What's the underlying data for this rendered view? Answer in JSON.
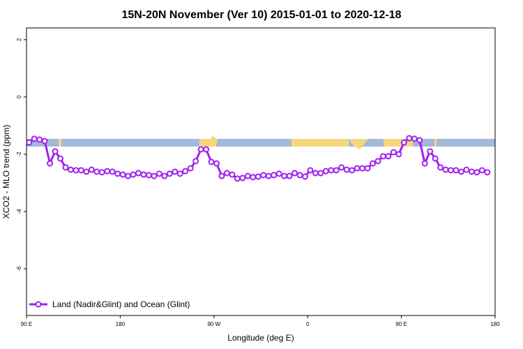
{
  "chart_data": {
    "type": "line",
    "title": "15N-20N November (Ver 10)   2015-01-01 to 2020-12-18",
    "x_label": "Longitude (deg E)",
    "y_label": "XCO2 - MLO trend (ppm)",
    "xlim": [
      90,
      540
    ],
    "xticks": [
      {
        "value": 90,
        "label": "90 E"
      },
      180,
      {
        "value": 270,
        "label": "90 W"
      },
      {
        "value": 360,
        "label": "0"
      },
      {
        "value": 450,
        "label": "90 E"
      },
      {
        "value": 540,
        "label": "180"
      }
    ],
    "ylim": [
      -7.63,
      2.41
    ],
    "yticks": [
      2,
      0,
      -2,
      -4,
      -6
    ],
    "legend": "bottom-left",
    "x": [
      92.5,
      97.5,
      102.5,
      107.5,
      112.5,
      117.5,
      122.5,
      127.5,
      132.5,
      137.5,
      142.5,
      147.5,
      152.5,
      157.5,
      162.5,
      167.5,
      172.5,
      177.5,
      182.5,
      187.5,
      192.5,
      197.5,
      202.5,
      207.5,
      212.5,
      217.5,
      222.5,
      227.5,
      232.5,
      237.5,
      242.5,
      247.5,
      252.5,
      257.5,
      262.5,
      267.5,
      272.5,
      277.5,
      282.5,
      287.5,
      292.5,
      297.5,
      302.5,
      307.5,
      312.5,
      317.5,
      322.5,
      327.5,
      332.5,
      337.5,
      342.5,
      347.5,
      352.5,
      357.5,
      362.5,
      367.5,
      372.5,
      377.5,
      382.5,
      387.5,
      392.5,
      397.5,
      402.5,
      407.5,
      412.5,
      417.5,
      422.5,
      427.5,
      432.5,
      437.5,
      442.5,
      447.5,
      452.5,
      457.5,
      462.5,
      467.5,
      472.5,
      477.5,
      482.5,
      487.5,
      492.5,
      497.5,
      502.5,
      507.5,
      512.5,
      517.5,
      522.5,
      527.5,
      532.5
    ],
    "series": [
      {
        "name": "Land (Nadir&Glint) and Ocean (Glint)",
        "color": "#a020f0",
        "values": [
          -1.59,
          -1.46,
          -1.49,
          -1.54,
          -2.32,
          -1.9,
          -2.15,
          -2.46,
          -2.54,
          -2.56,
          -2.56,
          -2.61,
          -2.54,
          -2.61,
          -2.63,
          -2.59,
          -2.61,
          -2.68,
          -2.71,
          -2.76,
          -2.71,
          -2.66,
          -2.71,
          -2.73,
          -2.76,
          -2.68,
          -2.76,
          -2.68,
          -2.61,
          -2.68,
          -2.59,
          -2.49,
          -2.24,
          -1.83,
          -1.83,
          -2.27,
          -2.32,
          -2.76,
          -2.66,
          -2.71,
          -2.85,
          -2.83,
          -2.76,
          -2.8,
          -2.78,
          -2.73,
          -2.76,
          -2.73,
          -2.68,
          -2.76,
          -2.76,
          -2.66,
          -2.73,
          -2.78,
          -2.56,
          -2.66,
          -2.66,
          -2.59,
          -2.56,
          -2.56,
          -2.46,
          -2.54,
          -2.56,
          -2.49,
          -2.49,
          -2.49,
          -2.32,
          -2.24,
          -2.07,
          -2.07,
          -1.93,
          -2.0,
          -1.59,
          -1.44,
          -1.46,
          -1.51,
          -2.32,
          -1.9,
          -2.15,
          -2.46,
          -2.54,
          -2.56,
          -2.56,
          -2.61,
          -2.54,
          -2.61,
          -2.63,
          -2.56,
          -2.63
        ]
      }
    ]
  }
}
